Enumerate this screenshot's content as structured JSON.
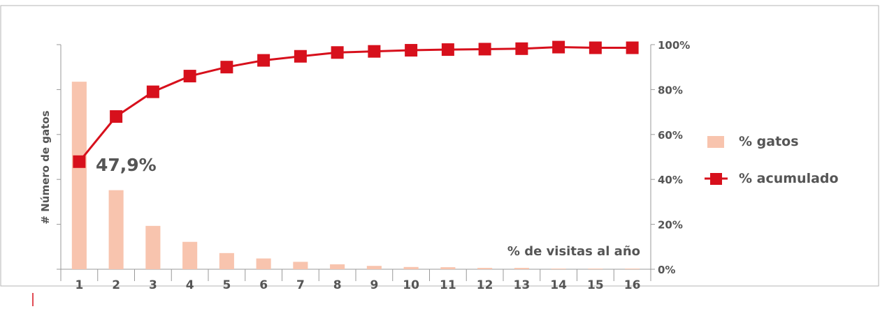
{
  "chart_data": {
    "type": "bar+line",
    "title": "",
    "categories": [
      "1",
      "2",
      "3",
      "4",
      "5",
      "6",
      "7",
      "8",
      "9",
      "10",
      "11",
      "12",
      "13",
      "14",
      "15",
      "16"
    ],
    "series": [
      {
        "name": "% gatos",
        "type": "bar",
        "axis": "left",
        "values": [
          83.5,
          35.2,
          19.3,
          12.2,
          7.2,
          4.8,
          3.3,
          2.2,
          1.5,
          1.0,
          0.9,
          0.6,
          0.6,
          0.3,
          0.3,
          0.3
        ]
      },
      {
        "name": "% acumulado",
        "type": "line",
        "axis": "right",
        "values": [
          47.9,
          68.0,
          79.0,
          86.0,
          90.0,
          93.0,
          94.8,
          96.5,
          97.0,
          97.5,
          97.8,
          98.0,
          98.2,
          98.9,
          98.6,
          98.6
        ]
      }
    ],
    "xlabel": "% de visitas al año",
    "ylabel": "# Número de gatos",
    "y_left_lim": [
      0,
      100
    ],
    "y_right_lim": [
      0,
      100
    ],
    "y_right_ticks": [
      "0%",
      "20%",
      "40%",
      "60%",
      "80%",
      "100%"
    ],
    "annotation": "47,9%",
    "legend_position": "right",
    "colors": {
      "bar": "#f8c4ae",
      "line": "#d7101c",
      "axis": "#999999"
    }
  }
}
